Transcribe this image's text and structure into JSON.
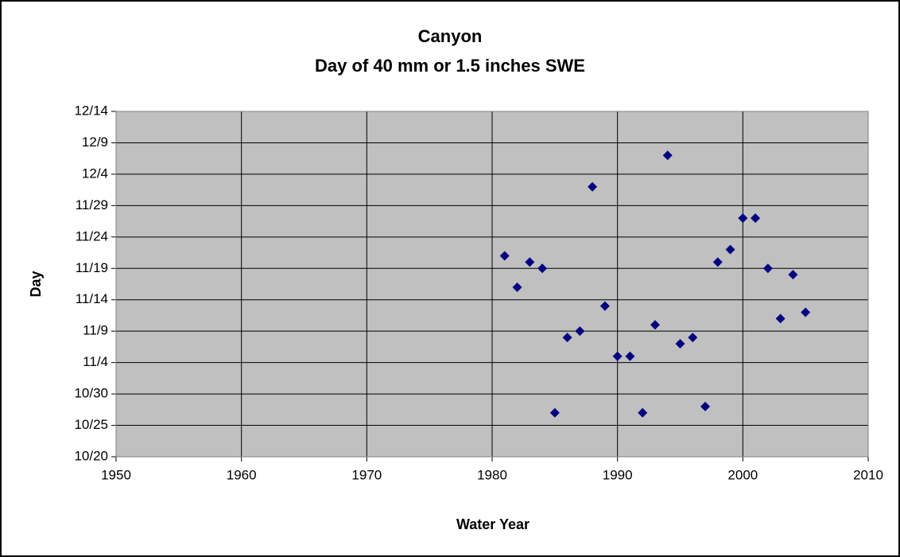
{
  "chart_data": {
    "type": "scatter",
    "title": "Canyon",
    "subtitle": "Day of 40 mm or 1.5 inches SWE",
    "x_label": "Water Year",
    "y_label": "Day",
    "series": [
      {
        "name": "Canyon",
        "color": "#000080",
        "x": [
          1981,
          1982,
          1983,
          1984,
          1985,
          1986,
          1987,
          1988,
          1989,
          1990,
          1991,
          1992,
          1993,
          1994,
          1995,
          1996,
          1997,
          1998,
          1999,
          2000,
          2001,
          2002,
          2003,
          2004,
          2005
        ],
        "values": [
          325,
          320,
          324,
          323,
          300,
          312,
          313,
          336,
          317,
          309,
          309,
          300,
          314,
          341,
          311,
          312,
          301,
          324,
          326,
          331,
          331,
          323,
          315,
          322,
          316
        ]
      }
    ],
    "xlim": [
      1950,
      2010
    ],
    "xticks": [
      1950,
      1960,
      1970,
      1980,
      1990,
      2000,
      2010
    ],
    "ylim": [
      293,
      348
    ],
    "yticks": [
      {
        "value": 293,
        "label": "10/20"
      },
      {
        "value": 298,
        "label": "10/25"
      },
      {
        "value": 303,
        "label": "10/30"
      },
      {
        "value": 308,
        "label": "11/4"
      },
      {
        "value": 313,
        "label": "11/9"
      },
      {
        "value": 318,
        "label": "11/14"
      },
      {
        "value": 323,
        "label": "11/19"
      },
      {
        "value": 328,
        "label": "11/24"
      },
      {
        "value": 333,
        "label": "11/29"
      },
      {
        "value": 338,
        "label": "12/4"
      },
      {
        "value": 343,
        "label": "12/9"
      },
      {
        "value": 348,
        "label": "12/14"
      }
    ],
    "grid": true
  }
}
